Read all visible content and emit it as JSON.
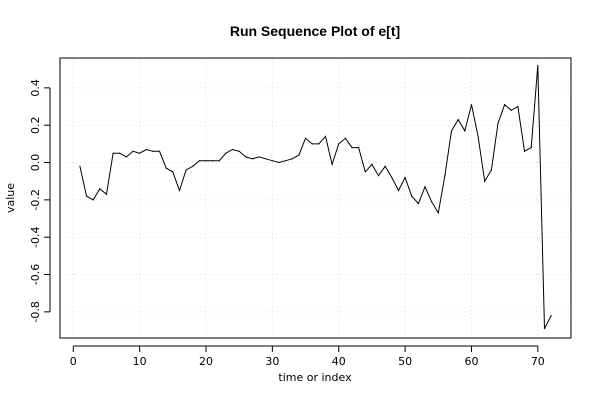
{
  "chart_data": {
    "type": "line",
    "title": "Run Sequence Plot of e[t]",
    "xlabel": "time or index",
    "ylabel": "value",
    "xlim": [
      -2,
      75
    ],
    "ylim": [
      -0.94,
      0.56
    ],
    "x_ticks": [
      0,
      10,
      20,
      30,
      40,
      50,
      60,
      70
    ],
    "y_ticks": [
      -0.8,
      -0.6,
      -0.4,
      -0.2,
      0.0,
      0.2,
      0.4
    ],
    "y_tick_labels": [
      "-0.8",
      "-0.6",
      "-0.4",
      "-0.2",
      "0.0",
      "0.2",
      "0.4"
    ],
    "grid": true,
    "series": [
      {
        "color": "#000000",
        "x": [
          1,
          2,
          3,
          4,
          5,
          6,
          7,
          8,
          9,
          10,
          11,
          12,
          13,
          14,
          15,
          16,
          17,
          18,
          19,
          20,
          21,
          22,
          23,
          24,
          25,
          26,
          27,
          28,
          29,
          30,
          31,
          32,
          33,
          34,
          35,
          36,
          37,
          38,
          39,
          40,
          41,
          42,
          43,
          44,
          45,
          46,
          47,
          48,
          49,
          50,
          51,
          52,
          53,
          54,
          55,
          56,
          57,
          58,
          59,
          60,
          61,
          62,
          63,
          64,
          65,
          66,
          67,
          68,
          69,
          70,
          71,
          72
        ],
        "values": [
          -0.02,
          -0.18,
          -0.2,
          -0.14,
          -0.17,
          0.05,
          0.05,
          0.03,
          0.06,
          0.05,
          0.07,
          0.06,
          0.06,
          -0.03,
          -0.05,
          -0.15,
          -0.04,
          -0.02,
          0.01,
          0.01,
          0.01,
          0.01,
          0.05,
          0.07,
          0.06,
          0.03,
          0.02,
          0.03,
          0.02,
          0.01,
          0.0,
          0.01,
          0.02,
          0.04,
          0.13,
          0.1,
          0.1,
          0.14,
          -0.01,
          0.1,
          0.13,
          0.08,
          0.08,
          -0.05,
          -0.01,
          -0.07,
          -0.02,
          -0.08,
          -0.15,
          -0.08,
          -0.18,
          -0.22,
          -0.13,
          -0.21,
          -0.27,
          -0.07,
          0.17,
          0.23,
          0.17,
          0.31,
          0.14,
          -0.1,
          -0.04,
          0.21,
          0.31,
          0.28,
          0.3,
          0.06,
          0.08,
          0.52,
          -0.89,
          -0.82
        ]
      }
    ]
  }
}
